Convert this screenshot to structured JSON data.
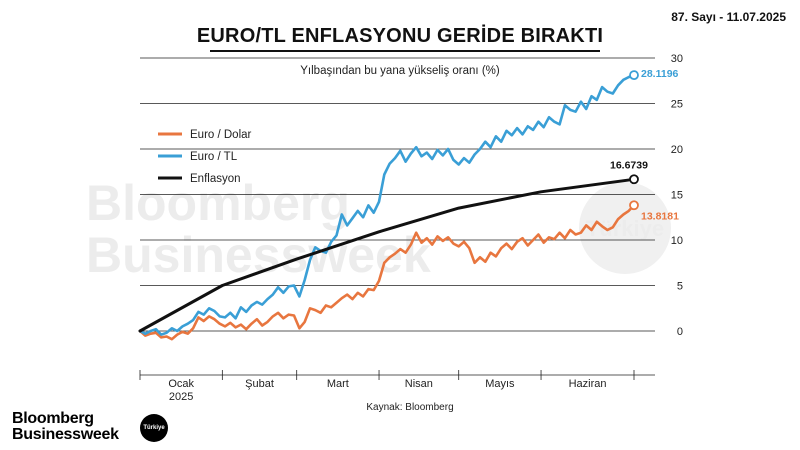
{
  "header": {
    "issue": "87. Sayı - 11.07.2025"
  },
  "brand": {
    "logo_line1": "Bloomberg",
    "logo_line2": "Businessweek",
    "badge": "Türkiye"
  },
  "watermark": {
    "line1": "Bloomberg",
    "line2": "Businessweek",
    "badge": "Türkiye"
  },
  "chart_data": {
    "type": "line",
    "title": "EURO/TL ENFLASYONU GERİDE BIRAKTI",
    "subtitle": "Yılbaşından bu yana yükseliş oranı (%)",
    "source": "Kaynak: Bloomberg",
    "ylim": [
      0,
      30
    ],
    "yticks": [
      0,
      5,
      10,
      15,
      20,
      25,
      30
    ],
    "x_range": [
      0,
      186
    ],
    "months": [
      {
        "label": "Ocak",
        "sub": "2025",
        "start": 0,
        "end": 31
      },
      {
        "label": "Şubat",
        "sub": "",
        "start": 31,
        "end": 59
      },
      {
        "label": "Mart",
        "sub": "",
        "start": 59,
        "end": 90
      },
      {
        "label": "Nisan",
        "sub": "",
        "start": 90,
        "end": 120
      },
      {
        "label": "Mayıs",
        "sub": "",
        "start": 120,
        "end": 151
      },
      {
        "label": "Haziran",
        "sub": "",
        "start": 151,
        "end": 186
      }
    ],
    "grid": "horizontal",
    "legend_position": "left",
    "series": [
      {
        "name": "Euro / Dolar",
        "color": "#e8763f",
        "end_label": "13.8181",
        "x": [
          0,
          2,
          4,
          6,
          8,
          10,
          12,
          14,
          16,
          18,
          20,
          22,
          24,
          26,
          28,
          30,
          32,
          34,
          36,
          38,
          40,
          42,
          44,
          46,
          48,
          50,
          52,
          54,
          56,
          58,
          60,
          62,
          64,
          66,
          68,
          70,
          72,
          74,
          76,
          78,
          80,
          82,
          84,
          86,
          88,
          90,
          92,
          94,
          96,
          98,
          100,
          102,
          104,
          106,
          108,
          110,
          112,
          114,
          116,
          118,
          120,
          122,
          124,
          126,
          128,
          130,
          132,
          134,
          136,
          138,
          140,
          142,
          144,
          146,
          148,
          150,
          152,
          154,
          156,
          158,
          160,
          162,
          164,
          166,
          168,
          170,
          172,
          174,
          176,
          178,
          180,
          182,
          184,
          186
        ],
        "y": [
          0.0,
          -0.5,
          -0.3,
          -0.2,
          -0.7,
          -0.6,
          -0.9,
          -0.4,
          -0.1,
          -0.3,
          0.3,
          1.5,
          1.1,
          1.6,
          1.3,
          0.8,
          0.5,
          0.9,
          0.4,
          0.7,
          0.2,
          0.8,
          1.3,
          0.6,
          1.0,
          1.6,
          2.0,
          1.4,
          1.8,
          1.7,
          0.3,
          1.0,
          2.5,
          2.3,
          2.0,
          2.8,
          2.6,
          3.1,
          3.6,
          4.0,
          3.5,
          4.2,
          3.8,
          4.6,
          4.5,
          5.5,
          7.5,
          8.1,
          8.5,
          9.0,
          8.6,
          9.5,
          10.8,
          9.7,
          10.2,
          9.5,
          10.4,
          9.9,
          10.3,
          9.6,
          9.3,
          9.8,
          9.1,
          7.5,
          8.1,
          7.6,
          8.6,
          8.2,
          9.1,
          9.6,
          9.0,
          9.8,
          10.2,
          9.4,
          10.0,
          10.6,
          9.7,
          10.3,
          10.1,
          10.8,
          10.2,
          11.1,
          10.6,
          10.8,
          11.6,
          11.1,
          12.0,
          11.5,
          11.1,
          11.4,
          12.3,
          12.8,
          13.2,
          13.8181
        ]
      },
      {
        "name": "Euro / TL",
        "color": "#3a9fd6",
        "end_label": "28.1196",
        "x": [
          0,
          2,
          4,
          6,
          8,
          10,
          12,
          14,
          16,
          18,
          20,
          22,
          24,
          26,
          28,
          30,
          32,
          34,
          36,
          38,
          40,
          42,
          44,
          46,
          48,
          50,
          52,
          54,
          56,
          58,
          60,
          62,
          64,
          66,
          68,
          70,
          72,
          74,
          76,
          78,
          80,
          82,
          84,
          86,
          88,
          90,
          92,
          94,
          96,
          98,
          100,
          102,
          104,
          106,
          108,
          110,
          112,
          114,
          116,
          118,
          120,
          122,
          124,
          126,
          128,
          130,
          132,
          134,
          136,
          138,
          140,
          142,
          144,
          146,
          148,
          150,
          152,
          154,
          156,
          158,
          160,
          162,
          164,
          166,
          168,
          170,
          172,
          174,
          176,
          178,
          180,
          182,
          184,
          186
        ],
        "y": [
          0.0,
          -0.3,
          0.0,
          0.2,
          -0.4,
          -0.2,
          0.3,
          0.0,
          0.5,
          0.8,
          1.2,
          2.1,
          1.8,
          2.5,
          2.2,
          1.6,
          1.5,
          2.0,
          1.4,
          2.6,
          2.1,
          2.8,
          3.2,
          2.9,
          3.5,
          4.0,
          4.8,
          4.2,
          4.9,
          5.0,
          3.8,
          5.6,
          7.8,
          9.2,
          8.8,
          8.6,
          9.8,
          10.5,
          12.8,
          11.6,
          12.4,
          13.2,
          12.5,
          13.8,
          13.0,
          14.2,
          17.2,
          18.4,
          19.0,
          19.8,
          18.6,
          19.5,
          20.2,
          19.2,
          19.6,
          18.9,
          19.9,
          19.3,
          20.0,
          18.8,
          18.3,
          19.0,
          18.5,
          19.4,
          20.0,
          20.8,
          20.2,
          21.4,
          20.8,
          22.0,
          21.5,
          22.3,
          21.6,
          22.5,
          22.1,
          23.0,
          22.4,
          23.5,
          23.0,
          22.7,
          24.8,
          24.3,
          24.1,
          25.2,
          24.4,
          25.8,
          25.4,
          26.8,
          26.3,
          26.1,
          27.0,
          27.6,
          27.9,
          28.1196
        ]
      },
      {
        "name": "Enflasyon",
        "color": "#111111",
        "end_label": "16.6739",
        "x": [
          0,
          31,
          59,
          90,
          120,
          151,
          186
        ],
        "y": [
          0.0,
          5.0,
          7.9,
          10.9,
          13.5,
          15.3,
          16.6739
        ]
      }
    ]
  }
}
